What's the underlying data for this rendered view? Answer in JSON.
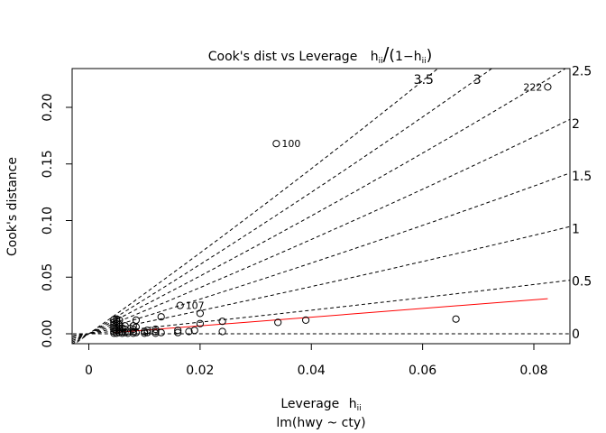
{
  "chart_data": {
    "type": "scatter",
    "title_main": "Cook's dist vs Leverage",
    "title_formula": {
      "h": "h",
      "sub": "ii",
      "slash": "/",
      "open": "(",
      "one": "1",
      "minus": "−",
      "close": ")"
    },
    "xlabel": {
      "text": "Leverage",
      "h": "h",
      "sub": "ii"
    },
    "sublabel": "lm(hwy ~ cty)",
    "ylabel": "Cook's distance",
    "xlim": [
      0,
      0.085
    ],
    "ylim": [
      0,
      0.22
    ],
    "x_ticks": [
      {
        "value": 0,
        "label": "0"
      },
      {
        "value": 0.02,
        "label": "0.02"
      },
      {
        "value": 0.04,
        "label": "0.04"
      },
      {
        "value": 0.06,
        "label": "0.06"
      },
      {
        "value": 0.08,
        "label": "0.08"
      }
    ],
    "y_ticks": [
      {
        "value": 0,
        "label": "0.00"
      },
      {
        "value": 0.05,
        "label": "0.05"
      },
      {
        "value": 0.1,
        "label": "0.10"
      },
      {
        "value": 0.15,
        "label": "0.15"
      },
      {
        "value": 0.2,
        "label": "0.20"
      }
    ],
    "contours": [
      {
        "slope": 0,
        "label": "0"
      },
      {
        "slope": 0.5,
        "label": "0.5"
      },
      {
        "slope": 1,
        "label": "1"
      },
      {
        "slope": 1.5,
        "label": "1.5"
      },
      {
        "slope": 2,
        "label": "2"
      },
      {
        "slope": 2.5,
        "label": "2.5"
      },
      {
        "slope": 3,
        "label": "3"
      },
      {
        "slope": 3.5,
        "label": "3.5"
      }
    ],
    "smoother": {
      "x": [
        0.0045,
        0.0825
      ],
      "y": [
        0.001,
        0.031
      ],
      "color": "#ff0000"
    },
    "points": [
      [
        0.0045,
        0.0005
      ],
      [
        0.0045,
        0.002
      ],
      [
        0.0045,
        0.004
      ],
      [
        0.0045,
        0.006
      ],
      [
        0.0045,
        0.008
      ],
      [
        0.0045,
        0.01
      ],
      [
        0.0045,
        0.0125
      ],
      [
        0.005,
        0.0005
      ],
      [
        0.005,
        0.003
      ],
      [
        0.005,
        0.005
      ],
      [
        0.005,
        0.007
      ],
      [
        0.005,
        0.009
      ],
      [
        0.005,
        0.011
      ],
      [
        0.005,
        0.013
      ],
      [
        0.0055,
        0.001
      ],
      [
        0.0055,
        0.004
      ],
      [
        0.0055,
        0.008
      ],
      [
        0.0055,
        0.012
      ],
      [
        0.006,
        0.0005
      ],
      [
        0.006,
        0.002
      ],
      [
        0.006,
        0.005
      ],
      [
        0.0065,
        0.001
      ],
      [
        0.0065,
        0.004
      ],
      [
        0.0065,
        0.007
      ],
      [
        0.007,
        0.0005
      ],
      [
        0.007,
        0.002
      ],
      [
        0.008,
        0.0005
      ],
      [
        0.008,
        0.002
      ],
      [
        0.008,
        0.004
      ],
      [
        0.008,
        0.007
      ],
      [
        0.0085,
        0.001
      ],
      [
        0.0085,
        0.006
      ],
      [
        0.0085,
        0.012
      ],
      [
        0.01,
        0.0005
      ],
      [
        0.01,
        0.002
      ],
      [
        0.0105,
        0.001
      ],
      [
        0.0105,
        0.003
      ],
      [
        0.012,
        0.0005
      ],
      [
        0.012,
        0.002
      ],
      [
        0.012,
        0.004
      ],
      [
        0.013,
        0.001
      ],
      [
        0.013,
        0.015
      ],
      [
        0.016,
        0.001
      ],
      [
        0.016,
        0.003
      ],
      [
        0.018,
        0.002
      ],
      [
        0.019,
        0.003
      ],
      [
        0.02,
        0.009
      ],
      [
        0.02,
        0.018
      ],
      [
        0.024,
        0.002
      ],
      [
        0.024,
        0.011
      ],
      [
        0.034,
        0.01
      ],
      [
        0.039,
        0.012
      ],
      [
        0.066,
        0.013
      ],
      [
        0.0164,
        0.025
      ],
      [
        0.0337,
        0.168
      ],
      [
        0.0825,
        0.218
      ]
    ],
    "labeled_points": [
      {
        "label": "107",
        "x": 0.0164,
        "y": 0.025
      },
      {
        "label": "100",
        "x": 0.0337,
        "y": 0.168
      },
      {
        "label": "222",
        "x": 0.0825,
        "y": 0.218
      }
    ]
  }
}
